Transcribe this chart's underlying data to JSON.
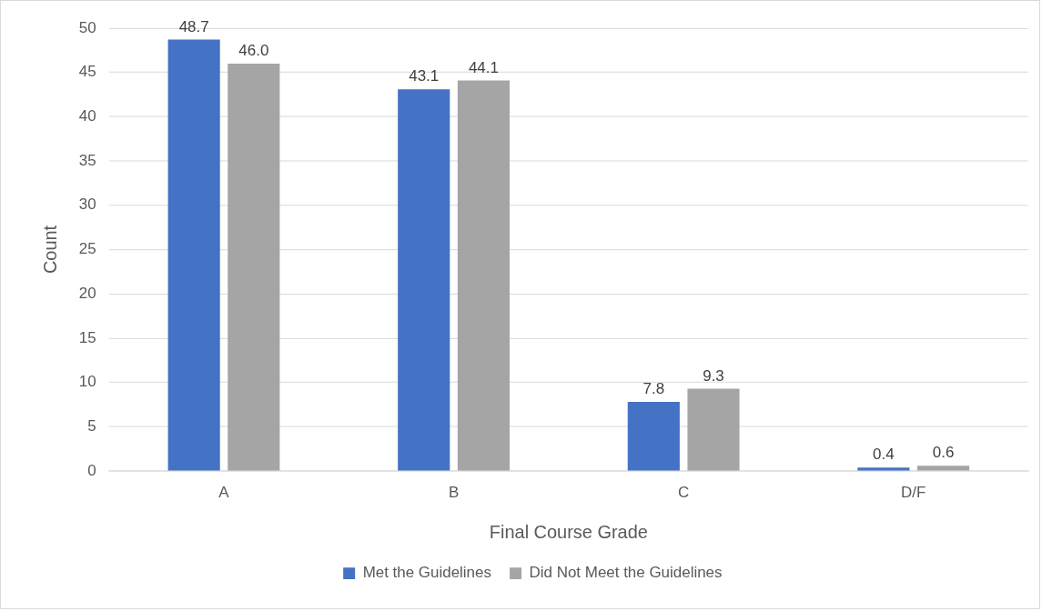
{
  "chart_data": {
    "type": "bar",
    "xlabel": "Final Course Grade",
    "ylabel": "Count",
    "categories": [
      "A",
      "B",
      "C",
      "D/F"
    ],
    "series": [
      {
        "name": "Met the Guidelines",
        "color": "#4472c4",
        "values": [
          48.7,
          43.1,
          7.8,
          0.4
        ],
        "value_labels": [
          "48.7",
          "43.1",
          "7.8",
          "0.4"
        ]
      },
      {
        "name": "Did Not Meet the Guidelines",
        "color": "#a5a5a5",
        "values": [
          46.0,
          44.1,
          9.3,
          0.6
        ],
        "value_labels": [
          "46.0",
          "44.1",
          "9.3",
          "0.6"
        ]
      }
    ],
    "ylim": [
      0,
      50
    ],
    "yticks": [
      0,
      5,
      10,
      15,
      20,
      25,
      30,
      35,
      40,
      45,
      50
    ],
    "grid": "y",
    "legend": "bottom"
  }
}
